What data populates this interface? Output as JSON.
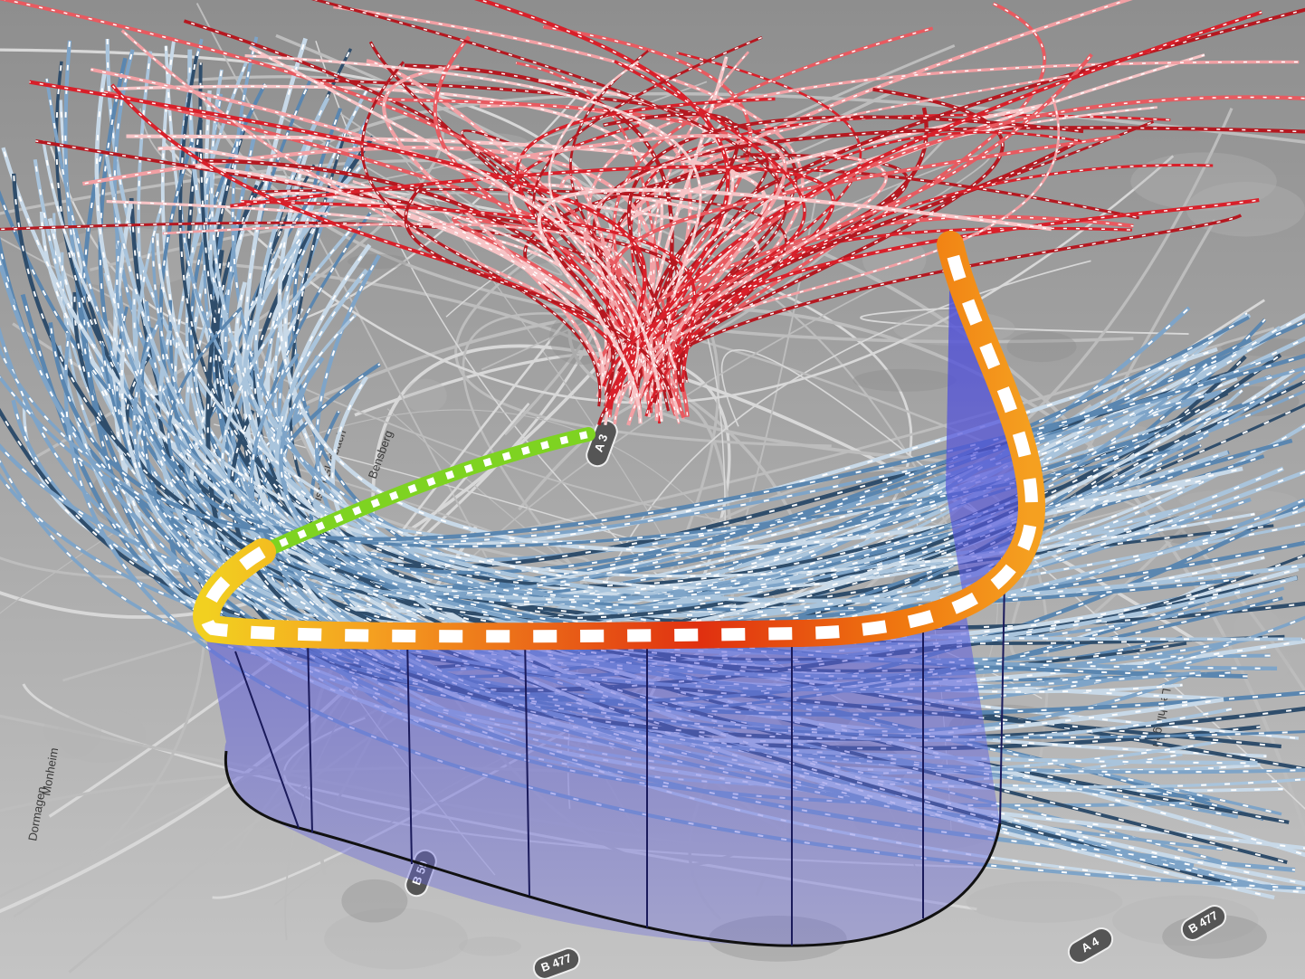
{
  "map_labels": [
    "Dormagen",
    "Monheim",
    "Bergisch Gladbach",
    "Bensberg",
    "Leichlingen"
  ],
  "road_shields": [
    "B 59",
    "A 4",
    "B 477",
    "A 3",
    "B 477"
  ]
}
